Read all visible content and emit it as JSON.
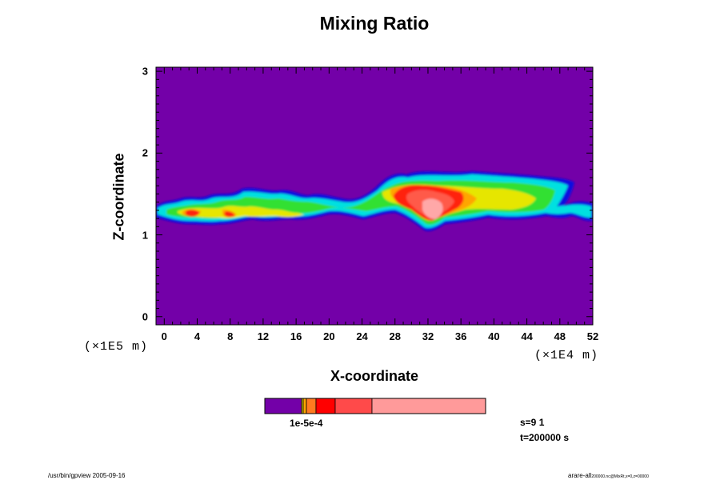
{
  "chart_data": {
    "type": "heatmap",
    "title": "Mixing Ratio",
    "xlabel": "X-coordinate",
    "ylabel": "Z-coordinate",
    "x_scale_label": "(×1E4 m)",
    "y_scale_label": "(×1E5 m)",
    "xlim": [
      -1,
      52
    ],
    "ylim": [
      -0.1,
      3.05
    ],
    "x_ticks": [
      "0",
      "4",
      "8",
      "12",
      "16",
      "20",
      "24",
      "28",
      "32",
      "36",
      "40",
      "44",
      "48",
      "52"
    ],
    "y_ticks": [
      "0",
      "1",
      "2",
      "3"
    ],
    "background_color": "#7300a8",
    "colorbar": {
      "colors": [
        "#7300a8",
        "#e6e600",
        "#ffa500",
        "#ff7a20",
        "#ff0000",
        "#ff4a4a",
        "#ff9a9a"
      ],
      "label": "1e-5e-4"
    },
    "layer": {
      "z_range": [
        1.1,
        1.75
      ],
      "description": "cloud layer with peak mixing ratio near x = 32"
    }
  },
  "annotations": {
    "s": "s=9 1",
    "t": "t=200000 s"
  },
  "footer": {
    "left": "/usr/bin/gpview 2005-09-16",
    "right": "arare-all",
    "right_sub": "200000.nc@MixRt,x=0,z=00000"
  }
}
